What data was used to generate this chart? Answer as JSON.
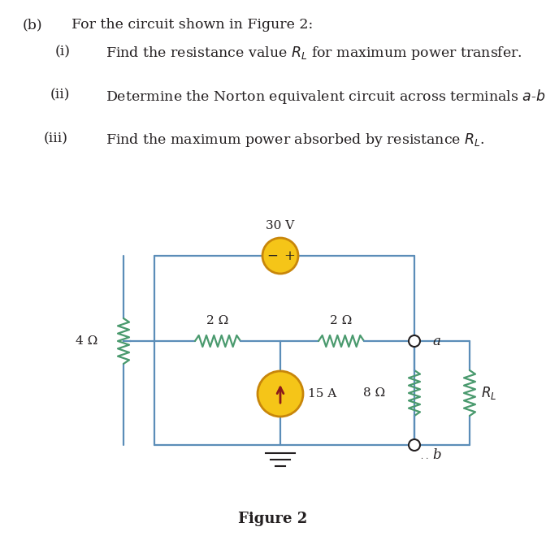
{
  "bg_color": "#ffffff",
  "text_color": "#231f20",
  "line_color": "#5b8db8",
  "resistor_color_green": "#4a9a6e",
  "source_fill": "#f5c518",
  "source_border": "#c8860a",
  "arrow_color": "#8b1a1a",
  "fig_width": 6.72,
  "fig_height": 6.81,
  "dpi": 100,
  "q_b_label": "(b)",
  "q_b_text": "For the circuit shown in Figure 2:",
  "q_i_label": "(i)",
  "q_i_text": "Find the resistance value $R_L$ for maximum power transfer.",
  "q_ii_label": "(ii)",
  "q_ii_text": "Determine the Norton equivalent circuit across terminals $a$-$b$.",
  "q_iii_label": "(iii)",
  "q_iii_text": "Find the maximum power absorbed by resistance $R_L$.",
  "figure_caption": "Figure 2",
  "voltage_label": "30 V",
  "current_label": "15 A",
  "r4_label": "4 Ω",
  "r2a_label": "2 Ω",
  "r2b_label": "2 Ω",
  "r8_label": "8 Ω",
  "rl_label": "$R_L$",
  "term_a": "a",
  "term_b": "b"
}
